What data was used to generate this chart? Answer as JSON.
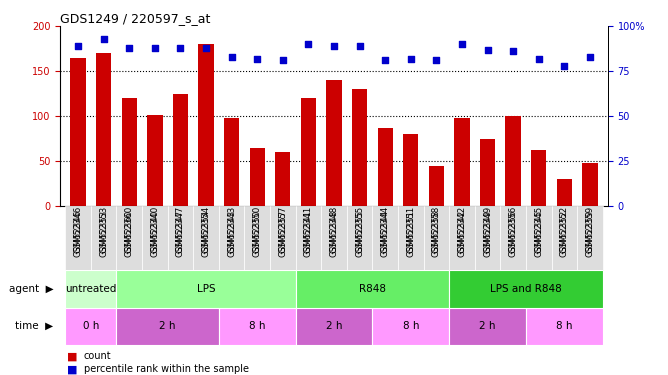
{
  "title": "GDS1249 / 220597_s_at",
  "samples": [
    "GSM52346",
    "GSM52353",
    "GSM52360",
    "GSM52340",
    "GSM52347",
    "GSM52354",
    "GSM52343",
    "GSM52350",
    "GSM52357",
    "GSM52341",
    "GSM52348",
    "GSM52355",
    "GSM52344",
    "GSM52351",
    "GSM52358",
    "GSM52342",
    "GSM52349",
    "GSM52356",
    "GSM52345",
    "GSM52352",
    "GSM52359"
  ],
  "counts": [
    165,
    170,
    120,
    101,
    125,
    180,
    98,
    65,
    60,
    120,
    140,
    130,
    87,
    80,
    45,
    98,
    75,
    100,
    63,
    30,
    48
  ],
  "percentiles": [
    89,
    93,
    88,
    88,
    88,
    88,
    83,
    82,
    81,
    90,
    89,
    89,
    81,
    82,
    81,
    90,
    87,
    86,
    82,
    78,
    83
  ],
  "bar_color": "#cc0000",
  "dot_color": "#0000cc",
  "ylim_left": [
    0,
    200
  ],
  "ylim_right": [
    0,
    100
  ],
  "yticks_left": [
    0,
    50,
    100,
    150,
    200
  ],
  "yticks_right": [
    0,
    25,
    50,
    75,
    100
  ],
  "yticklabels_right": [
    "0",
    "25",
    "50",
    "75",
    "100%"
  ],
  "agent_groups": [
    {
      "label": "untreated",
      "start": 0,
      "end": 2,
      "color": "#ccffcc"
    },
    {
      "label": "LPS",
      "start": 2,
      "end": 9,
      "color": "#99ff99"
    },
    {
      "label": "R848",
      "start": 9,
      "end": 15,
      "color": "#66ee66"
    },
    {
      "label": "LPS and R848",
      "start": 15,
      "end": 21,
      "color": "#33cc33"
    }
  ],
  "time_groups": [
    {
      "label": "0 h",
      "start": 0,
      "end": 2,
      "color": "#ff99ff"
    },
    {
      "label": "2 h",
      "start": 2,
      "end": 6,
      "color": "#cc66cc"
    },
    {
      "label": "8 h",
      "start": 6,
      "end": 9,
      "color": "#ff99ff"
    },
    {
      "label": "2 h",
      "start": 9,
      "end": 12,
      "color": "#cc66cc"
    },
    {
      "label": "8 h",
      "start": 12,
      "end": 15,
      "color": "#ff99ff"
    },
    {
      "label": "2 h",
      "start": 15,
      "end": 18,
      "color": "#cc66cc"
    },
    {
      "label": "8 h",
      "start": 18,
      "end": 21,
      "color": "#ff99ff"
    }
  ],
  "legend_count_label": "count",
  "legend_pct_label": "percentile rank within the sample",
  "bar_color_legend": "#cc0000",
  "dot_color_legend": "#0000cc",
  "bg_color": "#ffffff",
  "tick_color_left": "#cc0000",
  "tick_color_right": "#0000cc",
  "grid_yticks": [
    50,
    100,
    150
  ]
}
